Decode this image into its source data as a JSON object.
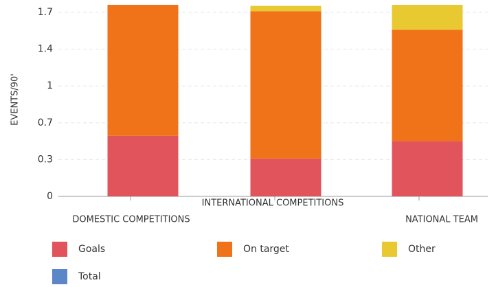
{
  "chart_data": {
    "type": "stacked-bar",
    "y_label": "EVENTS/90'",
    "categories": [
      "DOMESTIC COMPETITIONS",
      "INTERNATIONAL COMPETITIONS",
      "NATIONAL TEAM"
    ],
    "series": [
      {
        "name": "Goals",
        "color": "#e2545c",
        "values": [
          0.56,
          0.35,
          0.51
        ]
      },
      {
        "name": "On target",
        "color": "#f07219",
        "values": [
          1.21,
          1.36,
          1.03
        ]
      },
      {
        "name": "Other",
        "color": "#e9c932",
        "values": [
          0,
          0.05,
          0.23
        ]
      },
      {
        "name": "Total",
        "color": "#5b86c8",
        "values": [
          null,
          null,
          null
        ]
      }
    ],
    "ylim": [
      0,
      1.77
    ],
    "yticks": [
      0,
      {
        "value": 0.34,
        "label": "0.3"
      },
      {
        "value": 0.68,
        "label": "0.7"
      },
      {
        "value": 1.02,
        "label": "1"
      },
      {
        "value": 1.36,
        "label": "1.4"
      },
      1.7
    ],
    "grid": true
  }
}
